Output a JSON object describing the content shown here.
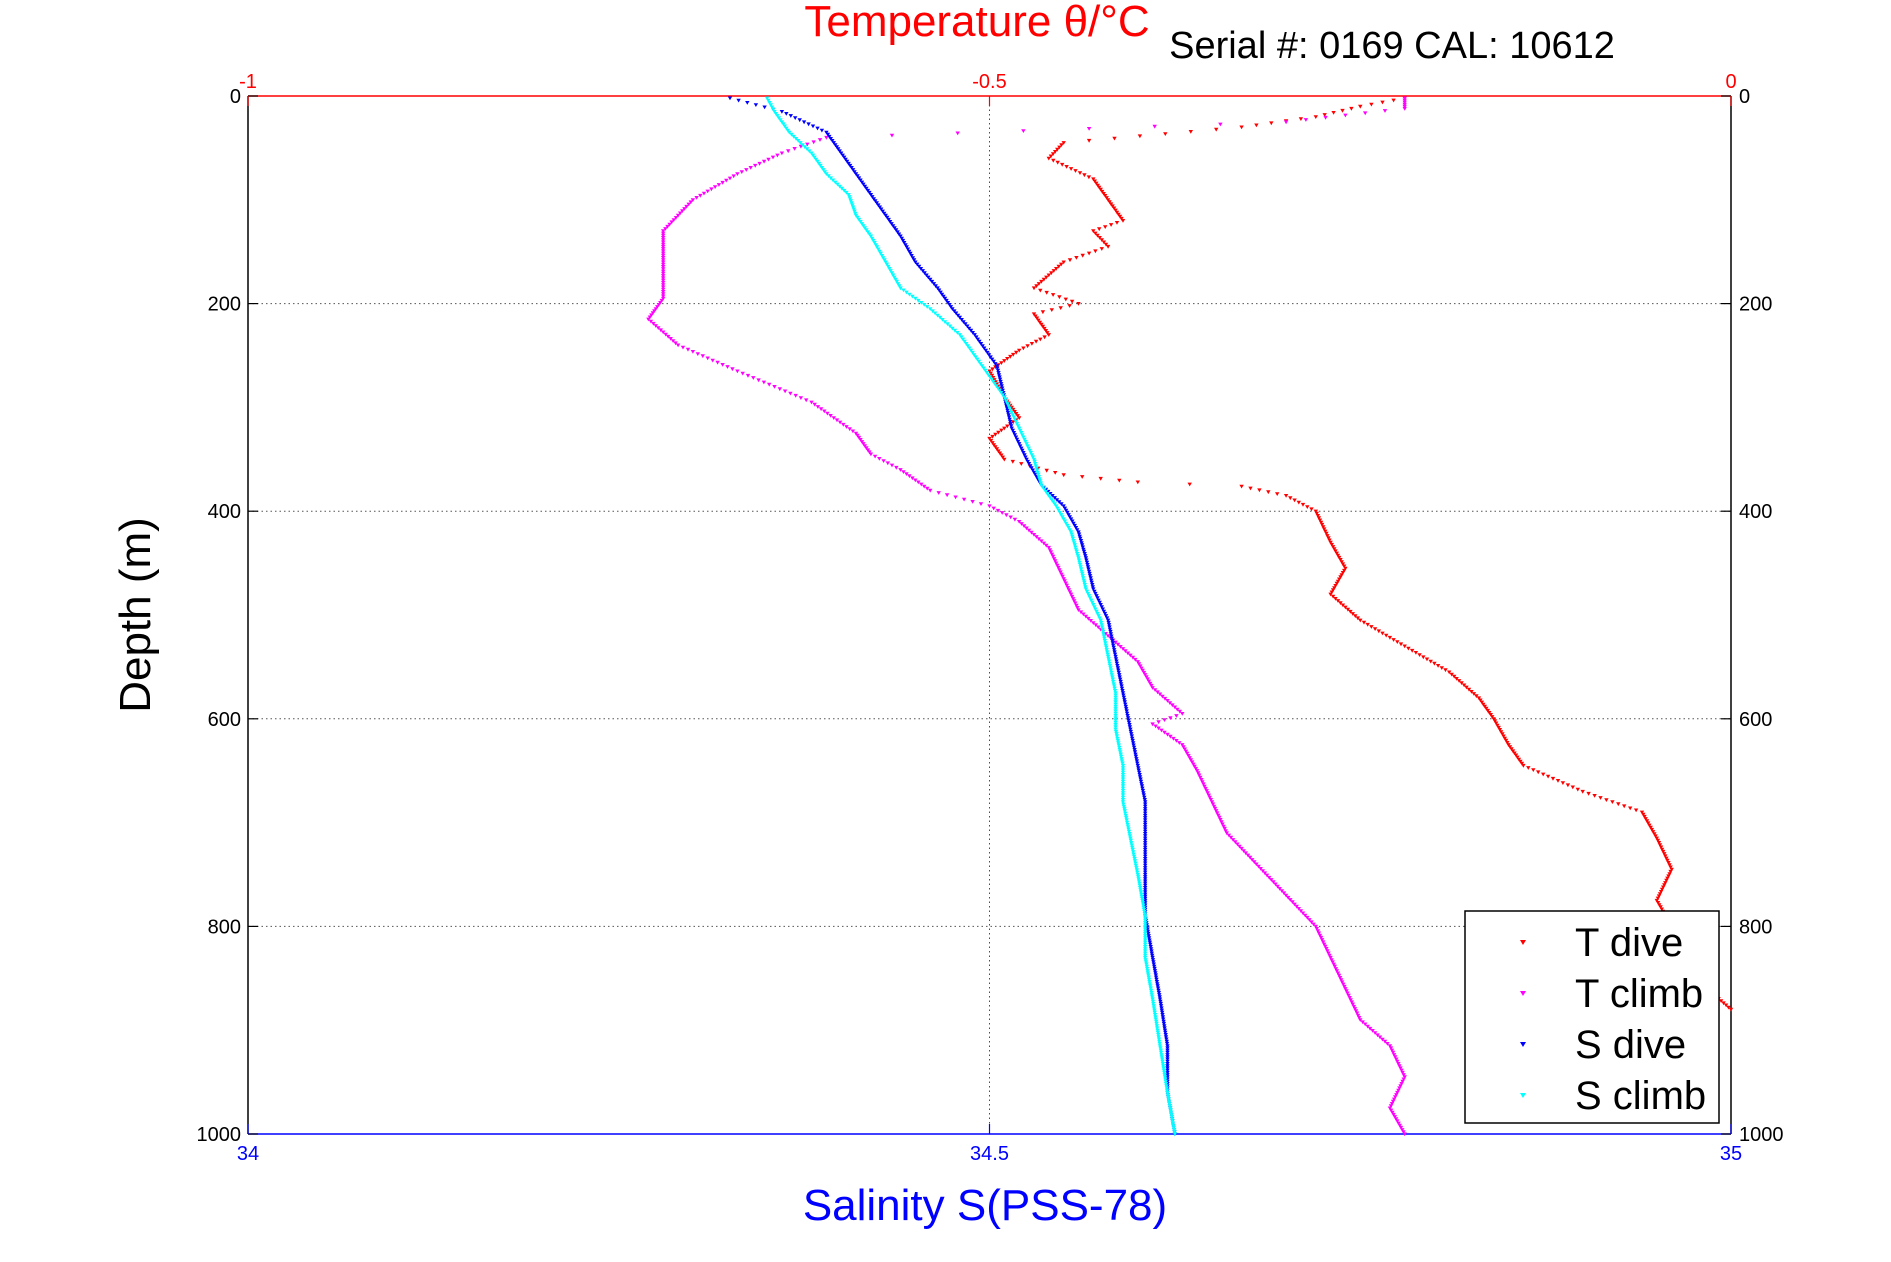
{
  "chart_data": {
    "type": "scatter",
    "top_axis_title": "Temperature θ/°C",
    "serial_label": "Serial #: 0169 CAL: 10612",
    "bottom_axis_title": "Salinity S(PSS-78)",
    "left_axis_title": "Depth (m)",
    "temperature_xlim": [
      -1,
      0
    ],
    "salinity_xlim": [
      34,
      35
    ],
    "depth_ylim": [
      0,
      1000
    ],
    "depth_reversed": true,
    "temperature_ticks": [
      "-1",
      "-0.5",
      "0"
    ],
    "salinity_ticks": [
      "34",
      "34.5",
      "35"
    ],
    "depth_ticks_left": [
      "0",
      "200",
      "400",
      "600",
      "800",
      "1000"
    ],
    "depth_ticks_right": [
      "0",
      "200",
      "400",
      "600",
      "800",
      "1000"
    ],
    "grid": "horizontal at depth ticks, vertical at -0.5 / 34.5",
    "legend_position": "bottom-right",
    "series": [
      {
        "name": "T dive",
        "axis": "temperature",
        "color": "#ff0000",
        "points": [
          [
            -0.22,
            2
          ],
          [
            -0.25,
            10
          ],
          [
            -0.28,
            20
          ],
          [
            -0.33,
            30
          ],
          [
            -0.45,
            45
          ],
          [
            -0.46,
            60
          ],
          [
            -0.43,
            80
          ],
          [
            -0.42,
            100
          ],
          [
            -0.41,
            120
          ],
          [
            -0.43,
            130
          ],
          [
            -0.42,
            145
          ],
          [
            -0.45,
            160
          ],
          [
            -0.47,
            185
          ],
          [
            -0.44,
            200
          ],
          [
            -0.47,
            210
          ],
          [
            -0.46,
            230
          ],
          [
            -0.48,
            245
          ],
          [
            -0.5,
            265
          ],
          [
            -0.49,
            290
          ],
          [
            -0.48,
            310
          ],
          [
            -0.5,
            330
          ],
          [
            -0.49,
            350
          ],
          [
            -0.45,
            365
          ],
          [
            -0.4,
            372
          ],
          [
            -0.33,
            376
          ],
          [
            -0.3,
            385
          ],
          [
            -0.28,
            400
          ],
          [
            -0.27,
            430
          ],
          [
            -0.26,
            455
          ],
          [
            -0.27,
            480
          ],
          [
            -0.25,
            505
          ],
          [
            -0.22,
            530
          ],
          [
            -0.19,
            555
          ],
          [
            -0.17,
            580
          ],
          [
            -0.16,
            600
          ],
          [
            -0.15,
            625
          ],
          [
            -0.14,
            645
          ],
          [
            -0.1,
            670
          ],
          [
            -0.06,
            690
          ],
          [
            -0.05,
            715
          ],
          [
            -0.04,
            745
          ],
          [
            -0.05,
            775
          ],
          [
            -0.04,
            800
          ],
          [
            -0.05,
            825
          ],
          [
            -0.02,
            855
          ],
          [
            0.0,
            880
          ]
        ]
      },
      {
        "name": "T climb",
        "axis": "temperature",
        "color": "#ff00ff",
        "points": [
          [
            -0.22,
            1000
          ],
          [
            -0.23,
            975
          ],
          [
            -0.22,
            945
          ],
          [
            -0.23,
            915
          ],
          [
            -0.25,
            890
          ],
          [
            -0.26,
            860
          ],
          [
            -0.27,
            830
          ],
          [
            -0.28,
            800
          ],
          [
            -0.3,
            770
          ],
          [
            -0.32,
            740
          ],
          [
            -0.34,
            710
          ],
          [
            -0.35,
            680
          ],
          [
            -0.36,
            650
          ],
          [
            -0.37,
            625
          ],
          [
            -0.39,
            605
          ],
          [
            -0.37,
            595
          ],
          [
            -0.39,
            570
          ],
          [
            -0.4,
            545
          ],
          [
            -0.42,
            520
          ],
          [
            -0.44,
            495
          ],
          [
            -0.45,
            465
          ],
          [
            -0.46,
            435
          ],
          [
            -0.48,
            410
          ],
          [
            -0.5,
            395
          ],
          [
            -0.54,
            380
          ],
          [
            -0.56,
            360
          ],
          [
            -0.58,
            345
          ],
          [
            -0.59,
            325
          ],
          [
            -0.62,
            295
          ],
          [
            -0.67,
            265
          ],
          [
            -0.71,
            240
          ],
          [
            -0.73,
            215
          ],
          [
            -0.72,
            195
          ],
          [
            -0.72,
            160
          ],
          [
            -0.72,
            130
          ],
          [
            -0.7,
            100
          ],
          [
            -0.67,
            75
          ],
          [
            -0.64,
            55
          ],
          [
            -0.61,
            40
          ],
          [
            -0.3,
            25
          ],
          [
            -0.22,
            12
          ],
          [
            -0.22,
            2
          ]
        ]
      },
      {
        "name": "S dive",
        "axis": "salinity",
        "color": "#0000ff",
        "points": [
          [
            34.325,
            2
          ],
          [
            34.36,
            15
          ],
          [
            34.39,
            35
          ],
          [
            34.4,
            55
          ],
          [
            34.41,
            75
          ],
          [
            34.42,
            95
          ],
          [
            34.43,
            115
          ],
          [
            34.44,
            135
          ],
          [
            34.45,
            160
          ],
          [
            34.465,
            185
          ],
          [
            34.475,
            205
          ],
          [
            34.49,
            230
          ],
          [
            34.505,
            260
          ],
          [
            34.51,
            290
          ],
          [
            34.515,
            320
          ],
          [
            34.525,
            350
          ],
          [
            34.535,
            375
          ],
          [
            34.55,
            395
          ],
          [
            34.56,
            420
          ],
          [
            34.565,
            445
          ],
          [
            34.57,
            475
          ],
          [
            34.58,
            505
          ],
          [
            34.585,
            540
          ],
          [
            34.59,
            575
          ],
          [
            34.595,
            610
          ],
          [
            34.6,
            645
          ],
          [
            34.605,
            680
          ],
          [
            34.605,
            715
          ],
          [
            34.605,
            750
          ],
          [
            34.605,
            790
          ],
          [
            34.61,
            830
          ],
          [
            34.615,
            870
          ],
          [
            34.62,
            915
          ],
          [
            34.62,
            960
          ],
          [
            34.625,
            1000
          ]
        ]
      },
      {
        "name": "S climb",
        "axis": "salinity",
        "color": "#00ffff",
        "points": [
          [
            34.625,
            1000
          ],
          [
            34.62,
            960
          ],
          [
            34.615,
            915
          ],
          [
            34.61,
            870
          ],
          [
            34.605,
            830
          ],
          [
            34.605,
            790
          ],
          [
            34.6,
            750
          ],
          [
            34.595,
            715
          ],
          [
            34.59,
            680
          ],
          [
            34.59,
            645
          ],
          [
            34.585,
            610
          ],
          [
            34.585,
            575
          ],
          [
            34.58,
            540
          ],
          [
            34.575,
            505
          ],
          [
            34.565,
            475
          ],
          [
            34.56,
            445
          ],
          [
            34.555,
            420
          ],
          [
            34.545,
            395
          ],
          [
            34.535,
            375
          ],
          [
            34.53,
            350
          ],
          [
            34.52,
            320
          ],
          [
            34.51,
            290
          ],
          [
            34.495,
            260
          ],
          [
            34.48,
            230
          ],
          [
            34.46,
            205
          ],
          [
            34.44,
            185
          ],
          [
            34.43,
            160
          ],
          [
            34.42,
            135
          ],
          [
            34.41,
            115
          ],
          [
            34.405,
            95
          ],
          [
            34.39,
            75
          ],
          [
            34.38,
            55
          ],
          [
            34.365,
            35
          ],
          [
            34.355,
            15
          ],
          [
            34.35,
            2
          ]
        ]
      }
    ]
  }
}
